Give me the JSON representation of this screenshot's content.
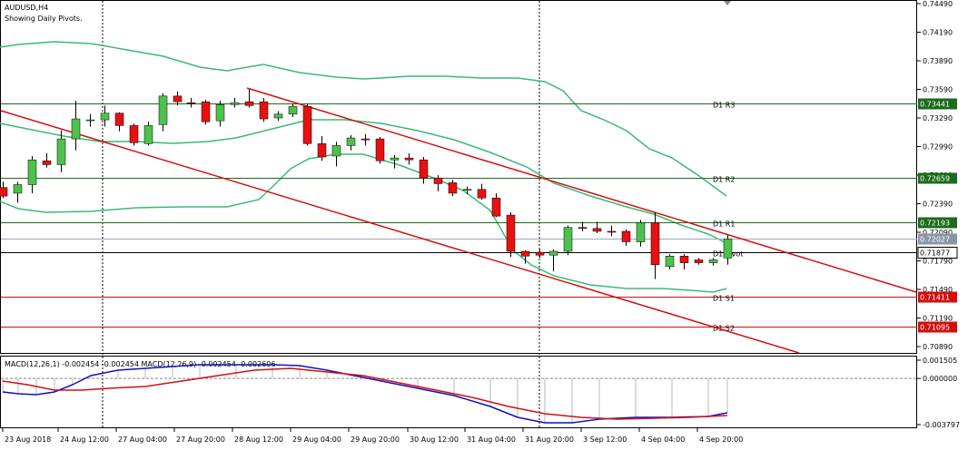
{
  "header": {
    "symbol": "AUDUSD,H4",
    "subtitle": "Showing Daily Pivots."
  },
  "macd_header": "MACD(12,26,1) -0.002454 -0.002454 MACD(12,26,9) -0.002454 -0.002606",
  "chart_data": {
    "type": "candlestick",
    "price_ticks": [
      "0.74490",
      "0.74190",
      "0.73890",
      "0.73590",
      "0.73290",
      "0.72990",
      "0.72690",
      "0.72390",
      "0.72090",
      "0.71790",
      "0.71490",
      "0.71190",
      "0.70890"
    ],
    "time_labels": [
      "23 Aug 2018",
      "24 Aug 12:00",
      "27 Aug 04:00",
      "27 Aug 20:00",
      "28 Aug 12:00",
      "29 Aug 04:00",
      "29 Aug 20:00",
      "30 Aug 12:00",
      "31 Aug 04:00",
      "31 Aug 20:00",
      "3 Sep 12:00",
      "4 Sep 04:00",
      "4 Sep 20:00"
    ],
    "levels": [
      {
        "name": "D1 R3",
        "value": 0.73441,
        "label": "0.73441",
        "kind": "green"
      },
      {
        "name": "D1 R2",
        "value": 0.72659,
        "label": "0.72659",
        "kind": "green"
      },
      {
        "name": "D1 R1",
        "value": 0.72193,
        "label": "0.72193",
        "kind": "green"
      },
      {
        "name": "",
        "value": 0.72027,
        "label": "0.72027",
        "kind": "gray"
      },
      {
        "name": "D1 Pivot",
        "value": 0.71877,
        "label": "0.71877",
        "kind": "black"
      },
      {
        "name": "D1 S1",
        "value": 0.71411,
        "label": "0.71411",
        "kind": "red"
      },
      {
        "name": "D1 S2",
        "value": 0.71095,
        "label": "0.71095",
        "kind": "red"
      }
    ],
    "candles": [
      {
        "o": 0.7256,
        "h": 0.7262,
        "l": 0.7245,
        "c": 0.7247
      },
      {
        "o": 0.725,
        "h": 0.7262,
        "l": 0.724,
        "c": 0.7259
      },
      {
        "o": 0.7259,
        "h": 0.7289,
        "l": 0.725,
        "c": 0.7285
      },
      {
        "o": 0.7284,
        "h": 0.7292,
        "l": 0.7277,
        "c": 0.728
      },
      {
        "o": 0.728,
        "h": 0.7316,
        "l": 0.7272,
        "c": 0.7307
      },
      {
        "o": 0.7307,
        "h": 0.7347,
        "l": 0.7295,
        "c": 0.7328
      },
      {
        "o": 0.7327,
        "h": 0.7333,
        "l": 0.732,
        "c": 0.7327
      },
      {
        "o": 0.7327,
        "h": 0.7342,
        "l": 0.732,
        "c": 0.7334
      },
      {
        "o": 0.7334,
        "h": 0.7335,
        "l": 0.7315,
        "c": 0.7321
      },
      {
        "o": 0.7321,
        "h": 0.7323,
        "l": 0.73,
        "c": 0.7303
      },
      {
        "o": 0.7302,
        "h": 0.7325,
        "l": 0.73,
        "c": 0.7321
      },
      {
        "o": 0.7322,
        "h": 0.7355,
        "l": 0.7315,
        "c": 0.7352
      },
      {
        "o": 0.7352,
        "h": 0.7357,
        "l": 0.7342,
        "c": 0.7346
      },
      {
        "o": 0.7345,
        "h": 0.735,
        "l": 0.734,
        "c": 0.7344
      },
      {
        "o": 0.7346,
        "h": 0.7348,
        "l": 0.7322,
        "c": 0.7325
      },
      {
        "o": 0.7326,
        "h": 0.7347,
        "l": 0.732,
        "c": 0.7343
      },
      {
        "o": 0.7343,
        "h": 0.735,
        "l": 0.734,
        "c": 0.7345
      },
      {
        "o": 0.7346,
        "h": 0.7359,
        "l": 0.734,
        "c": 0.7342
      },
      {
        "o": 0.7346,
        "h": 0.735,
        "l": 0.7325,
        "c": 0.7328
      },
      {
        "o": 0.7329,
        "h": 0.7336,
        "l": 0.7326,
        "c": 0.7333
      },
      {
        "o": 0.7333,
        "h": 0.7344,
        "l": 0.733,
        "c": 0.7341
      },
      {
        "o": 0.7341,
        "h": 0.7344,
        "l": 0.73,
        "c": 0.7302
      },
      {
        "o": 0.7302,
        "h": 0.731,
        "l": 0.7284,
        "c": 0.7288
      },
      {
        "o": 0.7289,
        "h": 0.7304,
        "l": 0.7278,
        "c": 0.73
      },
      {
        "o": 0.73,
        "h": 0.7311,
        "l": 0.7295,
        "c": 0.7308
      },
      {
        "o": 0.7307,
        "h": 0.7312,
        "l": 0.73,
        "c": 0.7306
      },
      {
        "o": 0.7307,
        "h": 0.7309,
        "l": 0.7281,
        "c": 0.7284
      },
      {
        "o": 0.7285,
        "h": 0.729,
        "l": 0.7276,
        "c": 0.7287
      },
      {
        "o": 0.7287,
        "h": 0.7292,
        "l": 0.728,
        "c": 0.7285
      },
      {
        "o": 0.7285,
        "h": 0.7288,
        "l": 0.726,
        "c": 0.7266
      },
      {
        "o": 0.7266,
        "h": 0.7269,
        "l": 0.7252,
        "c": 0.726
      },
      {
        "o": 0.7261,
        "h": 0.7264,
        "l": 0.7247,
        "c": 0.725
      },
      {
        "o": 0.7253,
        "h": 0.7257,
        "l": 0.7249,
        "c": 0.7254
      },
      {
        "o": 0.7254,
        "h": 0.726,
        "l": 0.7243,
        "c": 0.7245
      },
      {
        "o": 0.7245,
        "h": 0.725,
        "l": 0.7225,
        "c": 0.7226
      },
      {
        "o": 0.7227,
        "h": 0.723,
        "l": 0.7183,
        "c": 0.7189
      },
      {
        "o": 0.7189,
        "h": 0.719,
        "l": 0.7176,
        "c": 0.7184
      },
      {
        "o": 0.7188,
        "h": 0.7191,
        "l": 0.7182,
        "c": 0.7185
      },
      {
        "o": 0.7185,
        "h": 0.7191,
        "l": 0.7168,
        "c": 0.7189
      },
      {
        "o": 0.7189,
        "h": 0.7216,
        "l": 0.7185,
        "c": 0.7214
      },
      {
        "o": 0.7214,
        "h": 0.722,
        "l": 0.721,
        "c": 0.7213
      },
      {
        "o": 0.7213,
        "h": 0.722,
        "l": 0.7208,
        "c": 0.721
      },
      {
        "o": 0.721,
        "h": 0.7216,
        "l": 0.7205,
        "c": 0.7209
      },
      {
        "o": 0.721,
        "h": 0.7212,
        "l": 0.7195,
        "c": 0.7199
      },
      {
        "o": 0.7199,
        "h": 0.7222,
        "l": 0.7194,
        "c": 0.7219
      },
      {
        "o": 0.7219,
        "h": 0.723,
        "l": 0.716,
        "c": 0.7175
      },
      {
        "o": 0.7173,
        "h": 0.7186,
        "l": 0.717,
        "c": 0.7184
      },
      {
        "o": 0.7184,
        "h": 0.7186,
        "l": 0.717,
        "c": 0.7177
      },
      {
        "o": 0.718,
        "h": 0.7182,
        "l": 0.7175,
        "c": 0.7177
      },
      {
        "o": 0.7177,
        "h": 0.7182,
        "l": 0.7174,
        "c": 0.718
      },
      {
        "o": 0.7182,
        "h": 0.7206,
        "l": 0.7175,
        "c": 0.7202
      }
    ],
    "macd_ticks": [
      "0.001505",
      "0.000000",
      "-0.003797"
    ],
    "colors": {
      "bull": "#4cc24c",
      "bear": "#e81010",
      "channel": "#d01010",
      "band": "#3cb878",
      "level_green": "#1c6a1c",
      "level_red": "#d01010",
      "macd_line": "#1010c0",
      "macd_signal": "#d01010"
    }
  }
}
